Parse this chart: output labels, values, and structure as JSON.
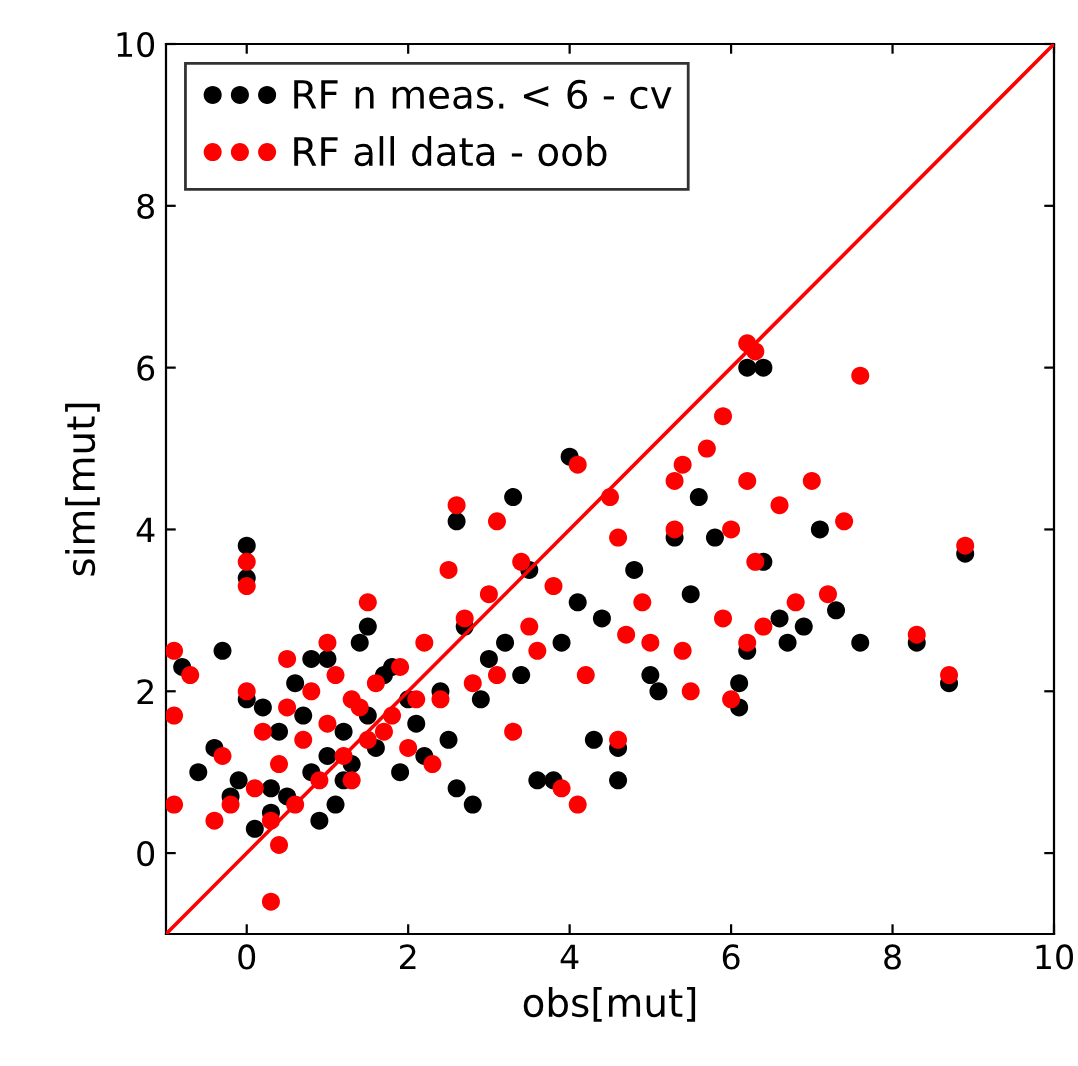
{
  "chart_data": {
    "type": "scatter",
    "xlabel": "obs[mut]",
    "ylabel": "sim[mut]",
    "xlim": [
      -1,
      10
    ],
    "ylim": [
      -1,
      10
    ],
    "xticks": [
      0,
      2,
      4,
      6,
      8,
      10
    ],
    "yticks": [
      0,
      2,
      4,
      6,
      8,
      10
    ],
    "grid": false,
    "legend": "top left",
    "series": [
      {
        "name": "RF n meas. < 6 - cv",
        "color": "#000000",
        "marker": "circle",
        "x": [
          6.2,
          6.4,
          4.0,
          3.3,
          2.6,
          7.1,
          8.9,
          6.9,
          7.6,
          8.3,
          8.7,
          6.1,
          6.1,
          4.6,
          4.3,
          4.6,
          3.6,
          3.8,
          2.8,
          2.6,
          -0.8,
          -0.3,
          0.0,
          0.0,
          3.5,
          5.6,
          5.3,
          6.4,
          7.3,
          6.7,
          6.2,
          5.5,
          5.0,
          4.8,
          4.4,
          3.9,
          3.0,
          2.4,
          2.0,
          1.8,
          1.5,
          1.2,
          1.0,
          0.8,
          0.5,
          0.3,
          0.1,
          -0.1,
          -0.4,
          -0.6,
          0.2,
          0.6,
          1.0,
          1.4,
          1.7,
          2.1,
          2.5,
          2.9,
          3.2,
          1.1,
          0.9,
          0.4,
          0.7,
          1.3,
          1.6,
          1.9,
          2.2,
          0.0,
          -0.2,
          0.3,
          1.5,
          0.8,
          1.2,
          2.7,
          3.4,
          4.1,
          5.1,
          5.8,
          6.6
        ],
        "values": [
          6.0,
          6.0,
          4.9,
          4.4,
          4.1,
          4.0,
          3.7,
          2.8,
          2.6,
          2.6,
          2.1,
          2.1,
          1.8,
          1.3,
          1.4,
          0.9,
          0.9,
          0.9,
          0.6,
          0.8,
          2.3,
          2.5,
          3.8,
          3.4,
          3.5,
          4.4,
          3.9,
          3.6,
          3.0,
          2.6,
          2.5,
          3.2,
          2.2,
          3.5,
          2.9,
          2.6,
          2.4,
          2.0,
          1.9,
          2.3,
          1.7,
          1.5,
          1.2,
          1.0,
          0.7,
          0.5,
          0.3,
          0.9,
          1.3,
          1.0,
          1.8,
          2.1,
          2.4,
          2.6,
          2.2,
          1.6,
          1.4,
          1.9,
          2.6,
          0.6,
          0.4,
          1.5,
          1.7,
          1.1,
          1.3,
          1.0,
          1.2,
          1.9,
          0.7,
          0.8,
          2.8,
          2.4,
          0.9,
          2.8,
          2.2,
          3.1,
          2.0,
          3.9,
          2.9
        ]
      },
      {
        "name": "RF all data - oob",
        "color": "#ff0000",
        "marker": "circle",
        "x": [
          6.2,
          6.3,
          7.6,
          5.9,
          5.7,
          5.4,
          5.3,
          6.2,
          7.0,
          6.6,
          6.0,
          7.4,
          5.3,
          8.9,
          6.3,
          6.8,
          7.2,
          6.4,
          5.9,
          8.3,
          8.7,
          6.2,
          6.0,
          4.6,
          5.4,
          4.1,
          4.5,
          3.1,
          2.6,
          3.4,
          0.0,
          0.0,
          -0.9,
          -0.7,
          -0.9,
          -0.9,
          -0.4,
          0.3,
          3.8,
          4.2,
          4.9,
          5.0,
          5.5,
          4.7,
          3.3,
          2.4,
          3.5,
          4.6,
          3.1,
          3.9,
          4.1,
          2.2,
          1.9,
          1.6,
          1.3,
          1.0,
          0.7,
          0.4,
          0.1,
          -0.2,
          0.2,
          0.5,
          0.8,
          1.1,
          1.4,
          1.7,
          2.0,
          2.3,
          2.7,
          3.0,
          0.3,
          0.6,
          0.9,
          1.2,
          1.5,
          1.8,
          2.1,
          0.5,
          1.0,
          1.5,
          0.0,
          -0.3,
          0.4,
          1.3,
          2.5,
          2.8,
          3.6
        ],
        "values": [
          6.3,
          6.2,
          5.9,
          5.4,
          5.0,
          4.8,
          4.6,
          4.6,
          4.6,
          4.3,
          4.0,
          4.1,
          4.0,
          3.8,
          3.6,
          3.1,
          3.2,
          2.8,
          2.9,
          2.7,
          2.2,
          2.6,
          1.9,
          1.4,
          2.5,
          4.8,
          4.4,
          4.1,
          4.3,
          3.6,
          3.6,
          3.3,
          2.5,
          2.2,
          1.7,
          0.6,
          0.4,
          -0.6,
          3.3,
          2.2,
          3.1,
          2.6,
          2.0,
          2.7,
          1.5,
          1.9,
          2.8,
          3.9,
          2.2,
          0.8,
          0.6,
          2.6,
          2.3,
          2.1,
          1.9,
          1.6,
          1.4,
          1.1,
          0.8,
          0.6,
          1.5,
          1.8,
          2.0,
          2.2,
          1.8,
          1.5,
          1.3,
          1.1,
          2.9,
          3.2,
          0.4,
          0.6,
          0.9,
          1.2,
          1.4,
          1.7,
          1.9,
          2.4,
          2.6,
          3.1,
          2.0,
          1.2,
          0.1,
          0.9,
          3.5,
          2.1,
          2.5
        ]
      },
      {
        "type": "line",
        "color": "#ff0000",
        "marker": "none",
        "x": [
          -1,
          10
        ],
        "values": [
          -1,
          10
        ]
      }
    ]
  }
}
